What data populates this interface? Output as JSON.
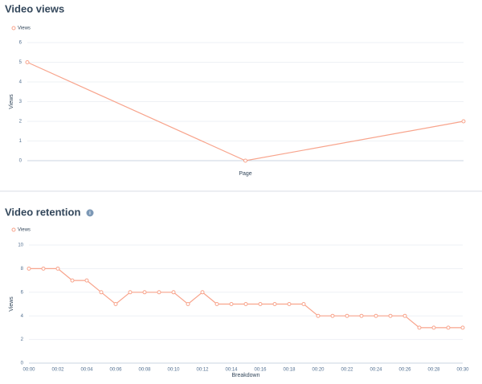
{
  "chart_data": [
    {
      "type": "line",
      "title": "Video views",
      "y_label": "Views",
      "x_label": "Page",
      "categories": [
        null,
        null,
        null
      ],
      "series": [
        {
          "name": "Views",
          "color": "#f8a48c",
          "values": [
            5,
            0,
            2
          ]
        }
      ],
      "ylim": [
        0,
        6
      ],
      "yticks": [
        0,
        1,
        2,
        3,
        4,
        5,
        6
      ],
      "grid": true
    },
    {
      "type": "line",
      "title": "Video retention",
      "y_label": "Views",
      "x_label": "Breakdown",
      "categories": [
        "00:00",
        null,
        "00:02",
        null,
        "00:04",
        null,
        "00:06",
        null,
        "00:08",
        null,
        "00:10",
        null,
        "00:12",
        null,
        "00:14",
        null,
        "00:16",
        null,
        "00:18",
        null,
        "00:20",
        null,
        "00:22",
        null,
        "00:24",
        null,
        "00:26",
        null,
        "00:28",
        null,
        "00:30"
      ],
      "series": [
        {
          "name": "Views",
          "color": "#f8a48c",
          "values": [
            8,
            8,
            8,
            7,
            7,
            6,
            5,
            6,
            6,
            6,
            6,
            5,
            6,
            5,
            5,
            5,
            5,
            5,
            5,
            5,
            4,
            4,
            4,
            4,
            4,
            4,
            4,
            3,
            3,
            3,
            3
          ]
        }
      ],
      "ylim": [
        0,
        10
      ],
      "yticks": [
        0,
        2,
        4,
        6,
        8,
        10
      ],
      "grid": true
    }
  ]
}
